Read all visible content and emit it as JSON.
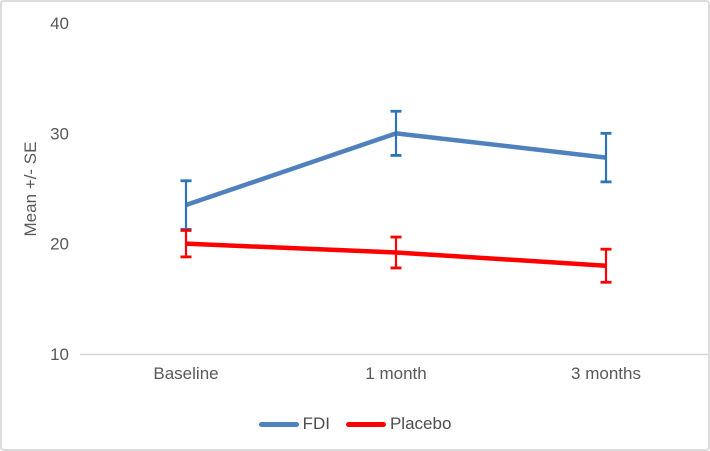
{
  "chart_data": {
    "type": "line",
    "title": "",
    "xlabel": "",
    "ylabel": "Mean +/- SE",
    "categories": [
      "Baseline",
      "1 month",
      "3 months"
    ],
    "series": [
      {
        "name": "FDI",
        "color": "#4F81BD",
        "error_color": "#2E75B6",
        "values": [
          23.5,
          30.0,
          27.8
        ],
        "se": [
          2.2,
          2.0,
          2.2
        ]
      },
      {
        "name": "Placebo",
        "color": "#FF0000",
        "error_color": "#FF0000",
        "values": [
          20.0,
          19.2,
          18.0
        ],
        "se": [
          1.2,
          1.4,
          1.5
        ]
      }
    ],
    "ylim": [
      10,
      40
    ],
    "yticks": [
      10,
      20,
      30,
      40
    ],
    "grid": false,
    "legend_position": "bottom",
    "error_bars": "standard error"
  },
  "styles": {
    "text_color": "#595959",
    "axis_color": "#d6d6d6",
    "background": "#ffffff",
    "border_color": "#dcdcdc"
  }
}
